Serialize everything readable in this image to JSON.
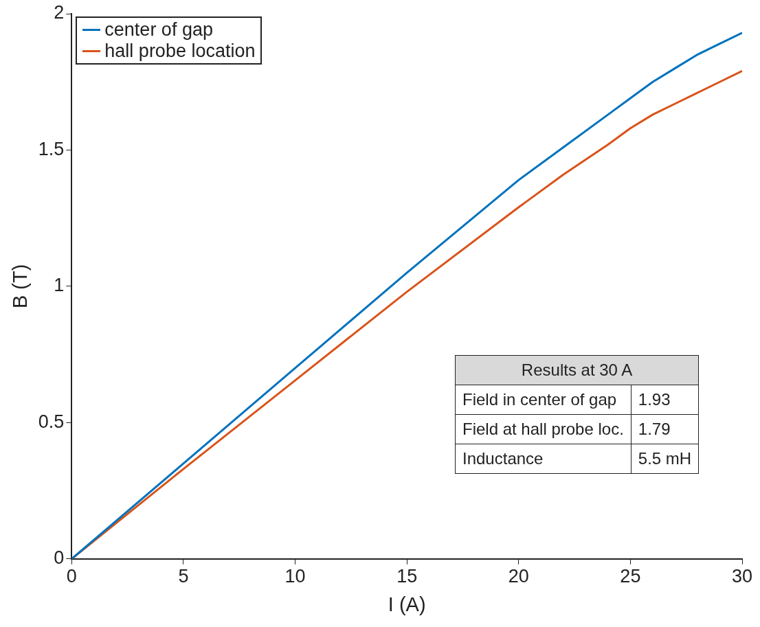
{
  "chart_data": {
    "type": "line",
    "xlabel": "I (A)",
    "ylabel": "B (T)",
    "xlim": [
      0,
      30
    ],
    "ylim": [
      0,
      2
    ],
    "xticks": [
      0,
      5,
      10,
      15,
      20,
      25,
      30
    ],
    "yticks": [
      0,
      0.5,
      1,
      1.5,
      2
    ],
    "grid": false,
    "legend": "top left",
    "marker": "none",
    "line_style": "solid",
    "x": [
      0,
      5,
      10,
      15,
      20,
      22,
      24,
      25,
      26,
      27,
      28,
      29,
      30
    ],
    "series": [
      {
        "name": "center of gap",
        "color": "#0072bd",
        "values": [
          0,
          0.35,
          0.7,
          1.05,
          1.39,
          1.51,
          1.63,
          1.69,
          1.75,
          1.8,
          1.85,
          1.89,
          1.93
        ]
      },
      {
        "name": "hall probe location",
        "color": "#d95319",
        "values": [
          0,
          0.33,
          0.655,
          0.98,
          1.29,
          1.41,
          1.52,
          1.58,
          1.63,
          1.67,
          1.71,
          1.75,
          1.79
        ]
      }
    ],
    "annotations": [
      "Results at 30 A",
      "Field in center of gap",
      "1.93",
      "Field at hall probe loc.",
      "1.79",
      "Inductance",
      "5.5 mH"
    ]
  }
}
